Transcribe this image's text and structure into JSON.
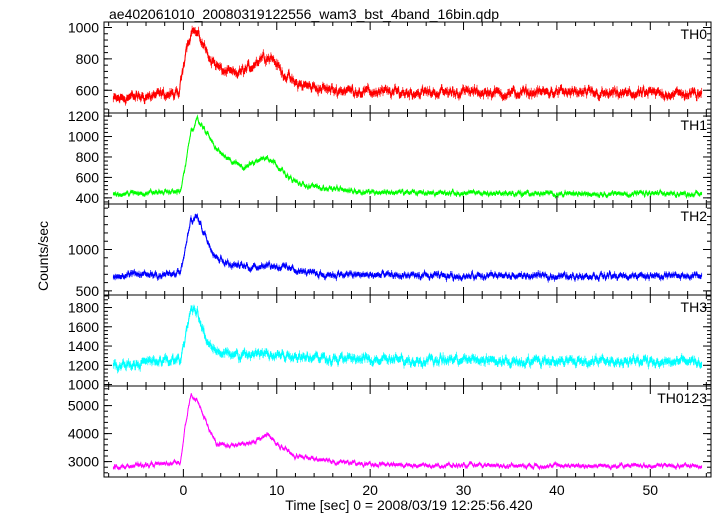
{
  "title": "ae402061010_20080319122556_wam3_bst_4band_16bin.qdp",
  "chart_data": {
    "type": "line",
    "title": "ae402061010_20080319122556_wam3_bst_4band_16bin.qdp",
    "xlabel": "Time [sec] 0 = 2008/03/19 12:25:56.420",
    "ylabel": "Counts/sec",
    "xlim": [
      -8.5,
      56.5
    ],
    "x_ticks": [
      0,
      10,
      20,
      30,
      40,
      50
    ],
    "x_tick_labels": [
      "0",
      "10",
      "20",
      "30",
      "40",
      "50"
    ],
    "grid": false,
    "legend": "none",
    "panels": [
      {
        "name": "TH0",
        "color": "#ff0000",
        "ylim": [
          455,
          1035
        ],
        "yticks": [
          600,
          800,
          1000
        ],
        "ytick_labels": [
          "600",
          "800",
          "1000"
        ],
        "x": [
          -7.5,
          -6,
          -4,
          -2,
          -0.5,
          0.3,
          1,
          1.8,
          2.8,
          4,
          5.5,
          7,
          8.5,
          9.5,
          10.5,
          12,
          14,
          16,
          18,
          20,
          25,
          30,
          35,
          40,
          45,
          50,
          55.5
        ],
        "values": [
          540,
          555,
          560,
          575,
          570,
          880,
          990,
          930,
          810,
          730,
          700,
          740,
          820,
          810,
          720,
          640,
          620,
          600,
          600,
          590,
          585,
          590,
          580,
          590,
          575,
          580,
          575
        ],
        "noise": 35
      },
      {
        "name": "TH1",
        "color": "#00ff00",
        "ylim": [
          340,
          1230
        ],
        "yticks": [
          400,
          600,
          800,
          1000,
          1200
        ],
        "ytick_labels": [
          "400",
          "600",
          "800",
          "1000",
          "1200"
        ],
        "x": [
          -7.5,
          -4,
          -1,
          -0.3,
          0.2,
          0.8,
          1.5,
          2.5,
          3.5,
          5,
          6.5,
          8,
          9,
          10,
          11,
          12.5,
          15,
          18,
          20,
          25,
          30,
          35,
          40,
          45,
          50,
          55.5
        ],
        "values": [
          440,
          450,
          460,
          470,
          700,
          1050,
          1160,
          1040,
          880,
          760,
          700,
          770,
          800,
          730,
          620,
          530,
          500,
          470,
          460,
          450,
          445,
          445,
          440,
          440,
          440,
          440
        ],
        "noise": 28
      },
      {
        "name": "TH2",
        "color": "#0000ff",
        "ylim": [
          450,
          1550
        ],
        "yticks": [
          500,
          1000
        ],
        "ytick_labels": [
          "500",
          "1000"
        ],
        "x": [
          -7.5,
          -4,
          -1,
          -0.3,
          0.2,
          0.8,
          1.5,
          2.5,
          3.5,
          5,
          7,
          9,
          11,
          13,
          15,
          20,
          25,
          30,
          35,
          40,
          45,
          50,
          55.5
        ],
        "values": [
          680,
          700,
          700,
          720,
          1000,
          1350,
          1400,
          1130,
          920,
          820,
          790,
          820,
          780,
          730,
          700,
          690,
          680,
          680,
          680,
          680,
          680,
          680,
          680
        ],
        "noise": 45
      },
      {
        "name": "TH3",
        "color": "#00ffff",
        "ylim": [
          985,
          1930
        ],
        "yticks": [
          1000,
          1200,
          1400,
          1600,
          1800
        ],
        "ytick_labels": [
          "1000",
          "1200",
          "1400",
          "1600",
          "1800"
        ],
        "x": [
          -7.5,
          -4,
          -1,
          -0.3,
          0.2,
          0.8,
          1.5,
          2.5,
          4,
          6,
          9,
          12,
          16,
          20,
          25,
          30,
          35,
          40,
          45,
          50,
          55.5
        ],
        "values": [
          1200,
          1230,
          1250,
          1270,
          1500,
          1800,
          1720,
          1450,
          1330,
          1300,
          1320,
          1300,
          1270,
          1260,
          1250,
          1260,
          1240,
          1250,
          1240,
          1240,
          1240
        ],
        "noise": 55
      },
      {
        "name": "TH0123",
        "color": "#ff00ff",
        "ylim": [
          2450,
          5700
        ],
        "yticks": [
          3000,
          4000,
          5000
        ],
        "ytick_labels": [
          "3000",
          "4000",
          "5000"
        ],
        "x": [
          -7.5,
          -4,
          -1,
          -0.3,
          0.2,
          0.8,
          1.5,
          2.5,
          3.5,
          5,
          7,
          9,
          10.5,
          12,
          15,
          18,
          20,
          25,
          30,
          35,
          40,
          45,
          50,
          55.5
        ],
        "values": [
          2800,
          2880,
          2950,
          3000,
          4300,
          5350,
          5150,
          4350,
          3650,
          3550,
          3650,
          3950,
          3500,
          3200,
          3050,
          2950,
          2900,
          2870,
          2860,
          2860,
          2850,
          2850,
          2850,
          2850
        ],
        "noise": 90
      }
    ]
  }
}
